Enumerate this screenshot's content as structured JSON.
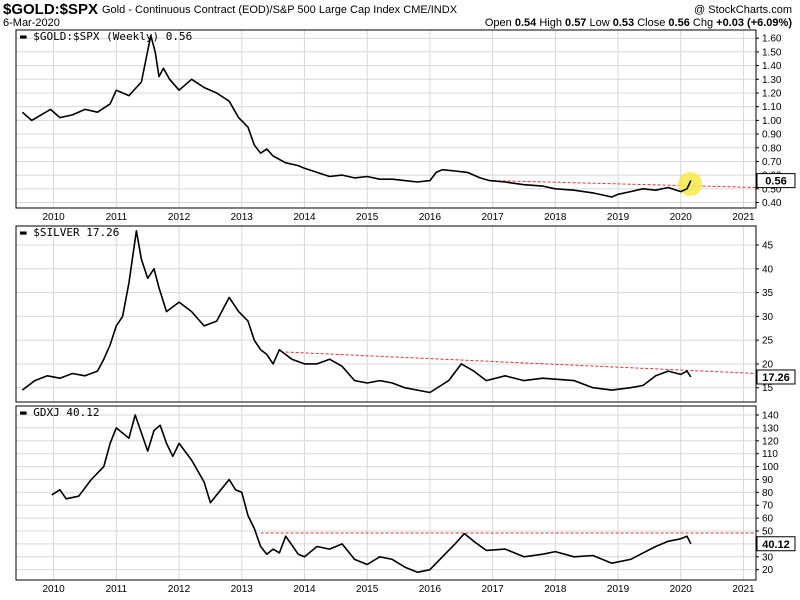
{
  "header": {
    "symbol": "$GOLD:$SPX",
    "description": "Gold - Continuous Contract (EOD)/S&P 500 Large Cap Index",
    "exchange": "CME/INDX",
    "date": "6-Mar-2020",
    "copyright": "@ StockCharts.com",
    "open_label": "Open",
    "open": "0.54",
    "high_label": "High",
    "high": "0.57",
    "low_label": "Low",
    "low": "0.53",
    "close_label": "Close",
    "close": "0.56",
    "chg_label": "Chg",
    "chg": "+0.03 (+6.09%)"
  },
  "colors": {
    "price_line": "#000000",
    "trendline": "#e03030",
    "highlight": "#f7ea4a",
    "grid": "#d8d8d8",
    "frame": "#000000"
  },
  "chart_data": [
    {
      "type": "line",
      "title": "$GOLD:$SPX (Weekly) 0.56",
      "x_start": 2009.4,
      "x_end": 2021.2,
      "x_ticks": [
        2010,
        2011,
        2012,
        2013,
        2014,
        2015,
        2016,
        2017,
        2018,
        2019,
        2020,
        2021
      ],
      "ylim": [
        0.36,
        1.66
      ],
      "y_ticks": [
        0.4,
        0.5,
        0.6,
        0.7,
        0.8,
        0.9,
        1.0,
        1.1,
        1.2,
        1.3,
        1.4,
        1.5,
        1.6
      ],
      "y_tick_labels": [
        "0.40",
        "0.50",
        "0.60",
        "0.70",
        "0.80",
        "0.90",
        "1.00",
        "1.10",
        "1.20",
        "1.30",
        "1.40",
        "1.50",
        "1.60"
      ],
      "last_value_label": "0.56",
      "series": [
        {
          "name": "$GOLD:$SPX",
          "x": [
            2009.5,
            2009.65,
            2009.8,
            2009.95,
            2010.1,
            2010.3,
            2010.5,
            2010.7,
            2010.9,
            2011.0,
            2011.2,
            2011.4,
            2011.55,
            2011.62,
            2011.68,
            2011.75,
            2011.85,
            2012.0,
            2012.2,
            2012.4,
            2012.6,
            2012.8,
            2012.95,
            2013.1,
            2013.2,
            2013.3,
            2013.4,
            2013.5,
            2013.7,
            2013.9,
            2014.0,
            2014.2,
            2014.4,
            2014.6,
            2014.8,
            2015.0,
            2015.2,
            2015.4,
            2015.6,
            2015.8,
            2016.0,
            2016.1,
            2016.2,
            2016.4,
            2016.6,
            2016.8,
            2016.95,
            2017.2,
            2017.5,
            2017.8,
            2018.0,
            2018.3,
            2018.6,
            2018.9,
            2019.0,
            2019.2,
            2019.4,
            2019.6,
            2019.8,
            2020.0,
            2020.1,
            2020.16
          ],
          "y": [
            1.06,
            1.0,
            1.04,
            1.08,
            1.02,
            1.04,
            1.08,
            1.06,
            1.12,
            1.22,
            1.18,
            1.28,
            1.62,
            1.5,
            1.32,
            1.38,
            1.3,
            1.22,
            1.3,
            1.24,
            1.2,
            1.14,
            1.02,
            0.95,
            0.82,
            0.76,
            0.79,
            0.74,
            0.69,
            0.67,
            0.65,
            0.62,
            0.59,
            0.6,
            0.58,
            0.59,
            0.57,
            0.57,
            0.56,
            0.55,
            0.56,
            0.62,
            0.64,
            0.63,
            0.62,
            0.58,
            0.56,
            0.55,
            0.53,
            0.52,
            0.5,
            0.49,
            0.47,
            0.44,
            0.46,
            0.48,
            0.5,
            0.49,
            0.51,
            0.48,
            0.5,
            0.56
          ]
        }
      ],
      "trendline": {
        "x": [
          2017.0,
          2021.2
        ],
        "y": [
          0.56,
          0.51
        ]
      },
      "highlight": {
        "x": 2020.15,
        "y": 0.535
      }
    },
    {
      "type": "line",
      "title": "$SILVER 17.26",
      "x_start": 2009.4,
      "x_end": 2021.2,
      "x_ticks": [
        2010,
        2011,
        2012,
        2013,
        2014,
        2015,
        2016,
        2017,
        2018,
        2019,
        2020,
        2021
      ],
      "ylim": [
        12,
        49
      ],
      "y_ticks": [
        15,
        20,
        25,
        30,
        35,
        40,
        45
      ],
      "y_tick_labels": [
        "15",
        "20",
        "25",
        "30",
        "35",
        "40",
        "45"
      ],
      "last_value_label": "17.26",
      "series": [
        {
          "name": "$SILVER",
          "x": [
            2009.5,
            2009.7,
            2009.9,
            2010.1,
            2010.3,
            2010.5,
            2010.7,
            2010.8,
            2010.9,
            2011.0,
            2011.1,
            2011.2,
            2011.32,
            2011.4,
            2011.5,
            2011.6,
            2011.68,
            2011.8,
            2012.0,
            2012.2,
            2012.4,
            2012.6,
            2012.8,
            2012.95,
            2013.1,
            2013.2,
            2013.3,
            2013.4,
            2013.5,
            2013.6,
            2013.8,
            2014.0,
            2014.2,
            2014.4,
            2014.6,
            2014.8,
            2015.0,
            2015.2,
            2015.4,
            2015.6,
            2015.8,
            2016.0,
            2016.3,
            2016.5,
            2016.7,
            2016.9,
            2017.2,
            2017.5,
            2017.8,
            2018.0,
            2018.3,
            2018.6,
            2018.9,
            2019.2,
            2019.4,
            2019.6,
            2019.8,
            2020.0,
            2020.1,
            2020.16
          ],
          "y": [
            14.5,
            16.5,
            17.5,
            17.0,
            18.0,
            17.5,
            18.5,
            21.0,
            24.0,
            28.0,
            30.0,
            37.0,
            48.0,
            42.0,
            38.0,
            40.0,
            36.0,
            31.0,
            33.0,
            31.0,
            28.0,
            29.0,
            34.0,
            31.0,
            29.0,
            25.0,
            23.0,
            22.0,
            20.0,
            23.0,
            21.0,
            20.0,
            20.0,
            21.0,
            19.5,
            16.5,
            16.0,
            16.5,
            16.0,
            15.0,
            14.5,
            14.0,
            16.5,
            20.0,
            18.5,
            16.5,
            17.5,
            16.5,
            17.0,
            16.8,
            16.5,
            15.0,
            14.5,
            15.0,
            15.5,
            17.5,
            18.5,
            17.8,
            18.5,
            17.26
          ]
        }
      ],
      "trendline": {
        "x": [
          2013.7,
          2021.2
        ],
        "y": [
          22.5,
          18.0
        ]
      }
    },
    {
      "type": "line",
      "title": "GDXJ 40.12",
      "x_start": 2009.4,
      "x_end": 2021.2,
      "x_ticks": [
        2010,
        2011,
        2012,
        2013,
        2014,
        2015,
        2016,
        2017,
        2018,
        2019,
        2020,
        2021
      ],
      "ylim": [
        12,
        147
      ],
      "y_ticks": [
        20,
        30,
        40,
        50,
        60,
        70,
        80,
        90,
        100,
        110,
        120,
        130,
        140
      ],
      "y_tick_labels": [
        "20",
        "30",
        "40",
        "50",
        "60",
        "70",
        "80",
        "90",
        "100",
        "110",
        "120",
        "130",
        "140"
      ],
      "last_value_label": "40.12",
      "series": [
        {
          "name": "GDXJ",
          "x": [
            2009.97,
            2010.1,
            2010.2,
            2010.4,
            2010.6,
            2010.8,
            2010.9,
            2011.0,
            2011.2,
            2011.3,
            2011.5,
            2011.6,
            2011.7,
            2011.8,
            2011.9,
            2012.0,
            2012.2,
            2012.4,
            2012.5,
            2012.6,
            2012.8,
            2012.9,
            2013.0,
            2013.1,
            2013.2,
            2013.3,
            2013.4,
            2013.5,
            2013.6,
            2013.7,
            2013.9,
            2014.0,
            2014.2,
            2014.4,
            2014.6,
            2014.8,
            2015.0,
            2015.2,
            2015.4,
            2015.6,
            2015.8,
            2016.0,
            2016.2,
            2016.4,
            2016.55,
            2016.7,
            2016.9,
            2017.2,
            2017.5,
            2017.8,
            2018.0,
            2018.3,
            2018.6,
            2018.9,
            2019.2,
            2019.4,
            2019.6,
            2019.8,
            2020.0,
            2020.1,
            2020.16
          ],
          "y": [
            78,
            82,
            75,
            77,
            90,
            100,
            118,
            130,
            122,
            140,
            112,
            128,
            132,
            118,
            108,
            118,
            105,
            88,
            72,
            78,
            90,
            82,
            80,
            62,
            52,
            38,
            32,
            36,
            33,
            46,
            32,
            30,
            38,
            36,
            40,
            28,
            24,
            30,
            28,
            22,
            18,
            20,
            30,
            40,
            48,
            42,
            35,
            36,
            30,
            32,
            34,
            30,
            31,
            25,
            28,
            33,
            38,
            42,
            44,
            46,
            40.12
          ]
        }
      ],
      "trendline": {
        "x": [
          2013.3,
          2021.2
        ],
        "y": [
          48.5,
          48.5
        ]
      }
    }
  ]
}
